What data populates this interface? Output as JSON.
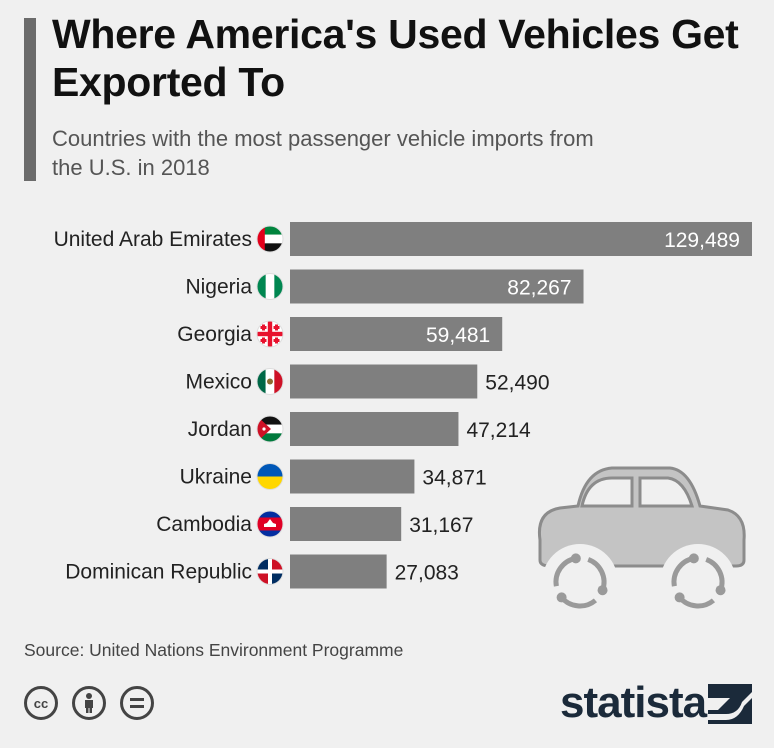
{
  "title": "Where America's Used Vehicles Get Exported To",
  "subtitle": "Countries with the most passenger vehicle imports from the U.S. in 2018",
  "source": "Source: United Nations Environment Programme",
  "brand": "statista",
  "icons": [
    "cc-license-icon",
    "attribution-icon",
    "no-derivatives-icon",
    "car-recycle-icon",
    "statista-logo-icon"
  ],
  "colors": {
    "bar": "#7f7f7f",
    "value_inside": "#ffffff",
    "value_outside": "#222222",
    "background": "#f0f0f0"
  },
  "chart_data": {
    "type": "bar",
    "orientation": "horizontal",
    "categories": [
      "United Arab Emirates",
      "Nigeria",
      "Georgia",
      "Mexico",
      "Jordan",
      "Ukraine",
      "Cambodia",
      "Dominican Republic"
    ],
    "values": [
      129489,
      82267,
      59481,
      52490,
      47214,
      34871,
      31167,
      27083
    ],
    "value_labels": [
      "129,489",
      "82,267",
      "59,481",
      "52,490",
      "47,214",
      "34,871",
      "31,167",
      "27,083"
    ],
    "flags": [
      "uae-flag-icon",
      "nigeria-flag-icon",
      "georgia-flag-icon",
      "mexico-flag-icon",
      "jordan-flag-icon",
      "ukraine-flag-icon",
      "cambodia-flag-icon",
      "dominican-republic-flag-icon"
    ],
    "title": "",
    "xlabel": "",
    "ylabel": "",
    "xlim": [
      0,
      129489
    ],
    "grid": false,
    "legend": "none"
  }
}
